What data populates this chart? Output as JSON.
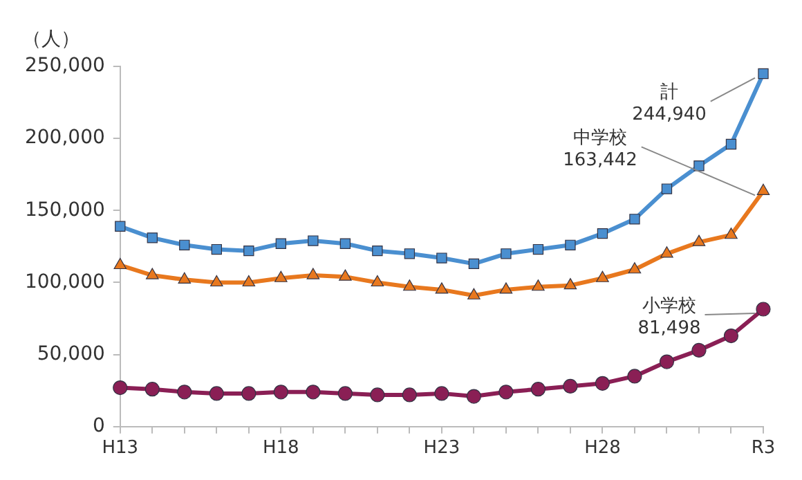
{
  "chart_data": {
    "type": "line",
    "ylabel": "（人）",
    "categories": [
      "H13",
      null,
      null,
      null,
      null,
      "H18",
      null,
      null,
      null,
      null,
      "H23",
      null,
      null,
      null,
      null,
      "H28",
      null,
      null,
      null,
      null,
      "R3"
    ],
    "series": [
      {
        "color": "#4a8fd0",
        "marker": "square",
        "values": [
          139000,
          131000,
          126000,
          123000,
          122000,
          127000,
          129000,
          127000,
          122000,
          120000,
          117000,
          113000,
          120000,
          123000,
          126000,
          134000,
          144000,
          165000,
          181000,
          196000,
          244940
        ]
      },
      {
        "color": "#e8781e",
        "marker": "triangle",
        "values": [
          112000,
          105000,
          102000,
          100000,
          100000,
          103000,
          105000,
          104000,
          100000,
          97000,
          95000,
          91000,
          95000,
          97000,
          98000,
          103000,
          109000,
          120000,
          128000,
          133000,
          163442
        ]
      },
      {
        "color": "#8a1f55",
        "marker": "circle",
        "values": [
          27000,
          26000,
          24000,
          23000,
          23000,
          24000,
          24000,
          23000,
          22000,
          22000,
          23000,
          21000,
          24000,
          26000,
          28000,
          30000,
          35000,
          45000,
          53000,
          63000,
          81498
        ]
      }
    ],
    "ylim": [
      0,
      250000
    ],
    "yticks": [
      0,
      {
        "value": 50000,
        "label": "50,000"
      },
      {
        "value": 100000,
        "label": "100,000"
      },
      {
        "value": 150000,
        "label": "150,000"
      },
      {
        "value": 200000,
        "label": "200,000"
      },
      {
        "value": 250000,
        "label": "250,000"
      }
    ],
    "grid": false,
    "legend": false,
    "annotations": [
      {
        "text": "計\n244,940",
        "x": "R3",
        "y": 244940
      },
      {
        "text": "中学校\n163,442",
        "x": "R3",
        "y": 163442
      },
      {
        "text": "小学校\n81,498",
        "x": "R3",
        "y": 81498
      }
    ]
  }
}
